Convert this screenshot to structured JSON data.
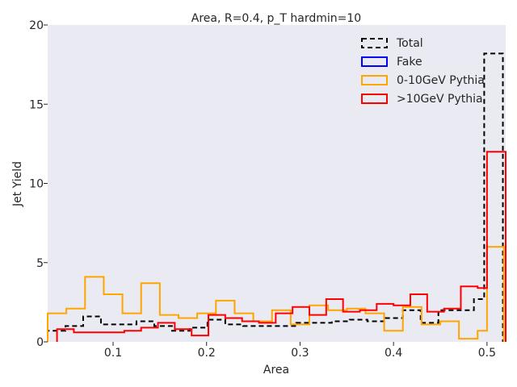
{
  "chart_data": {
    "type": "histogram",
    "title": "Area, R=0.4, p_T hardmin=10",
    "xlabel": "Area",
    "ylabel": "Jet Yield",
    "xlim": [
      0.03,
      0.52
    ],
    "ylim": [
      0,
      20
    ],
    "xticks": [
      0.1,
      0.2,
      0.3,
      0.4,
      0.5
    ],
    "xtick_labels": [
      "0.1",
      "0.2",
      "0.3",
      "0.4",
      "0.5"
    ],
    "yticks": [
      0,
      5,
      10,
      15,
      20
    ],
    "ytick_labels": [
      "0",
      "5",
      "10",
      "15",
      "20"
    ],
    "grid": false,
    "background": "#eaeaf2",
    "legend_position": "top-right",
    "series": [
      {
        "name": "Total",
        "color": "#000000",
        "style": "dashed",
        "edges": [
          0.03,
          0.049,
          0.068,
          0.087,
          0.106,
          0.125,
          0.144,
          0.163,
          0.182,
          0.201,
          0.22,
          0.239,
          0.258,
          0.277,
          0.296,
          0.315,
          0.334,
          0.353,
          0.372,
          0.391,
          0.41,
          0.429,
          0.448,
          0.467,
          0.486,
          0.497,
          0.517
        ],
        "values": [
          0.7,
          1.0,
          1.6,
          1.1,
          1.1,
          1.3,
          1.0,
          0.7,
          0.9,
          1.4,
          1.1,
          1.0,
          1.0,
          1.0,
          1.2,
          1.2,
          1.3,
          1.4,
          1.3,
          1.5,
          2.0,
          1.2,
          2.0,
          2.0,
          2.7,
          18.2
        ]
      },
      {
        "name": "Fake",
        "color": "#0000ff",
        "style": "solid",
        "edges": [],
        "values": []
      },
      {
        "name": "0-10GeV Pythia",
        "color": "#ffa500",
        "style": "solid",
        "edges": [
          0.03,
          0.05,
          0.07,
          0.09,
          0.11,
          0.13,
          0.15,
          0.17,
          0.19,
          0.21,
          0.23,
          0.25,
          0.27,
          0.29,
          0.31,
          0.33,
          0.35,
          0.37,
          0.39,
          0.41,
          0.43,
          0.45,
          0.47,
          0.49,
          0.5,
          0.518
        ],
        "values": [
          1.8,
          2.1,
          4.1,
          3.0,
          1.8,
          3.7,
          1.7,
          1.5,
          1.8,
          2.6,
          1.8,
          1.3,
          2.0,
          1.1,
          2.3,
          2.0,
          2.1,
          1.8,
          0.7,
          2.2,
          1.1,
          1.3,
          0.2,
          0.7,
          6.0
        ]
      },
      {
        "name": ">10GeV Pythia",
        "color": "#ff0000",
        "style": "solid",
        "edges": [
          0.04,
          0.058,
          0.076,
          0.094,
          0.112,
          0.13,
          0.148,
          0.166,
          0.184,
          0.202,
          0.22,
          0.238,
          0.256,
          0.274,
          0.292,
          0.31,
          0.328,
          0.346,
          0.364,
          0.382,
          0.4,
          0.418,
          0.436,
          0.454,
          0.472,
          0.49,
          0.5,
          0.52
        ],
        "values": [
          0.8,
          0.6,
          0.6,
          0.6,
          0.7,
          0.9,
          1.2,
          0.8,
          0.4,
          1.7,
          1.5,
          1.3,
          1.2,
          1.8,
          2.2,
          1.7,
          2.7,
          1.9,
          2.0,
          2.4,
          2.3,
          3.0,
          1.9,
          2.1,
          3.5,
          3.4,
          12.0
        ]
      }
    ]
  }
}
